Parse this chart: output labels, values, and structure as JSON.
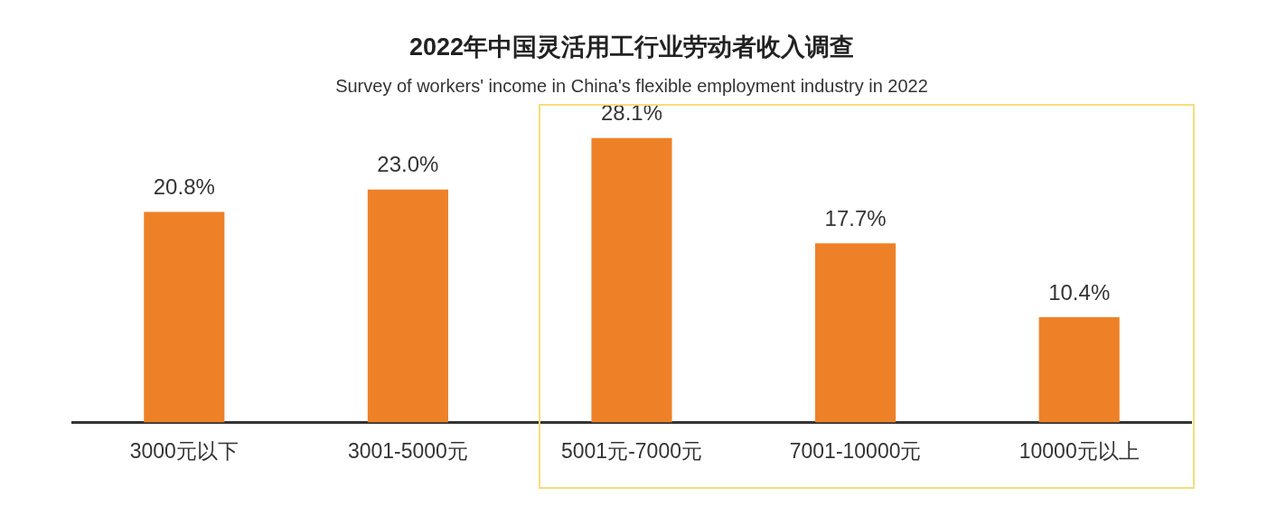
{
  "chart_data": {
    "type": "bar",
    "title": "2022年中国灵活用工行业劳动者收入调查",
    "subtitle": "Survey of workers' income in China's flexible employment industry in 2022",
    "categories": [
      "3000元以下",
      "3001-5000元",
      "5001元-7000元",
      "7001-10000元",
      "10000元以上"
    ],
    "values": [
      20.8,
      23.0,
      28.1,
      17.7,
      10.4
    ],
    "value_labels": [
      "20.8%",
      "23.0%",
      "28.1%",
      "17.7%",
      "10.4%"
    ],
    "color": "#ee8127",
    "tick_labels": "x",
    "grid": false,
    "legend": false
  }
}
